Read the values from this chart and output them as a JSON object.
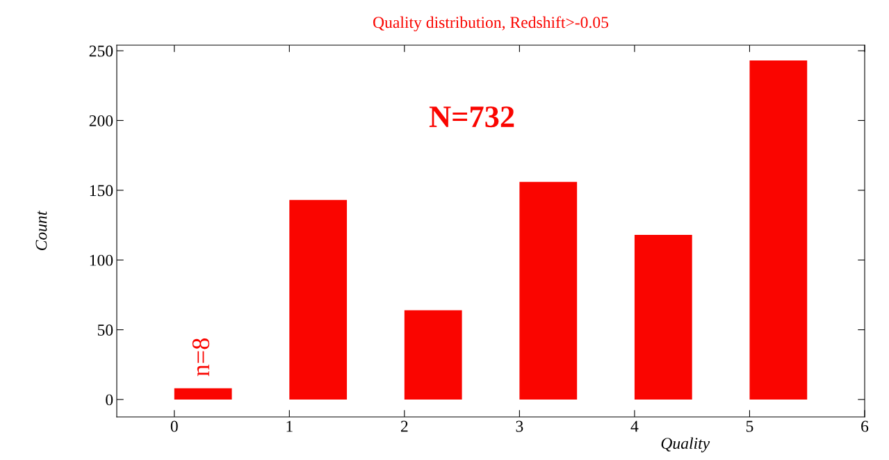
{
  "chart_data": {
    "type": "bar",
    "title": "Quality distribution, Redshift>-0.05",
    "xlabel": "Quality",
    "ylabel": "Count",
    "x": [
      0.25,
      1.25,
      2.25,
      3.25,
      4.25,
      5.25
    ],
    "values": [
      8,
      143,
      64,
      156,
      118,
      243
    ],
    "color": "#fa0500",
    "xlim": [
      -0.5,
      6
    ],
    "xticks": [
      0,
      1,
      2,
      3,
      4,
      5,
      6
    ],
    "ylim": [
      -12.5,
      254
    ],
    "yticks": [
      0,
      50,
      100,
      150,
      200,
      250
    ],
    "annotations": [
      "N=732",
      {
        "text": "n=8",
        "x": 0.25,
        "y": 8
      }
    ],
    "grid": false,
    "legend": false
  }
}
